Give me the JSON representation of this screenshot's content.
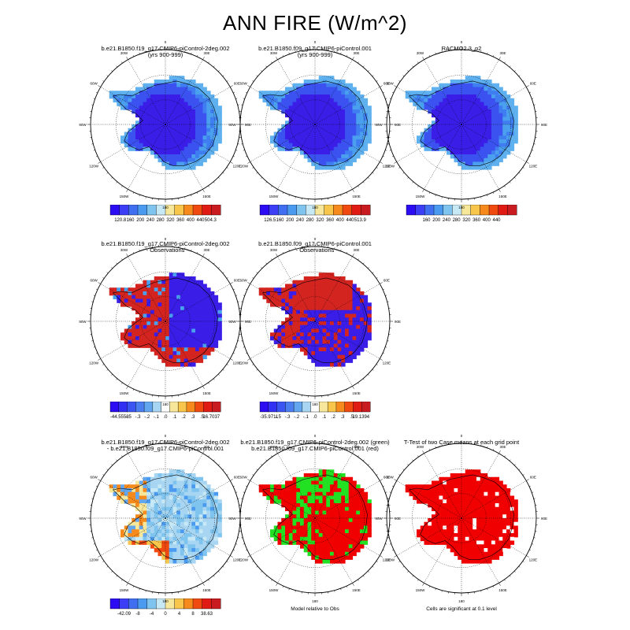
{
  "title": "ANN FIRE (W/m^2)",
  "panels": [
    {
      "id": "p1",
      "row": 0,
      "col": 0,
      "title": [
        "b.e21.B1850.f19_g17.CMIP6-piControl-2deg.002",
        "(yrs 900-999)"
      ],
      "style": "abs",
      "seed": 11
    },
    {
      "id": "p2",
      "row": 0,
      "col": 1,
      "title": [
        "b.e21.B1850.f09_g17.CMIP6-piControl.001",
        "(yrs 900-999)"
      ],
      "style": "abs",
      "seed": 23
    },
    {
      "id": "p3",
      "row": 0,
      "col": 2,
      "title": [
        "RACMO2.3_p2"
      ],
      "style": "abs",
      "seed": 37
    },
    {
      "id": "p4",
      "row": 1,
      "col": 0,
      "title": [
        "b.e21.B1850.f19_g17.CMIP6-piControl-2deg.002",
        "- Observations"
      ],
      "style": "diff_obs",
      "seed": 41
    },
    {
      "id": "p5",
      "row": 1,
      "col": 1,
      "title": [
        "b.e21.B1850.f09_g17.CMIP6-piControl.001",
        "- Observations"
      ],
      "style": "diff_obs2",
      "seed": 53
    },
    {
      "id": "p6",
      "row": 2,
      "col": 0,
      "title": [
        "b.e21.B1850.f19_g17.CMIP6-piControl-2deg.002",
        "- b.e21.B1850.f09_g17.CMIP6-piControl.001"
      ],
      "style": "diff_case",
      "seed": 67
    },
    {
      "id": "p7",
      "row": 2,
      "col": 1,
      "title": [
        "b.e21.B1850.f19_g17.CMIP6-piControl-2deg.002 (green)",
        "b.e21.B1850.f09_g17.CMIP6-piControl.001 (red)"
      ],
      "style": "green_red",
      "seed": 71
    },
    {
      "id": "p8",
      "row": 2,
      "col": 2,
      "title": [
        "T-Test of two Case means at each grid point"
      ],
      "style": "ttest",
      "seed": 83
    }
  ],
  "polar_labels": {
    "angles": [
      0,
      30,
      60,
      90,
      120,
      150,
      180,
      210,
      240,
      270,
      300,
      330
    ],
    "labels": [
      "0",
      "30E",
      "60E",
      "90E",
      "120E",
      "150E",
      "180",
      "150W",
      "120W",
      "90W",
      "60W",
      "30W"
    ]
  },
  "colorbars": [
    {
      "id": "cb1",
      "row": 0,
      "col": 0,
      "colors": [
        "#2c0cf2",
        "#3b3ef4",
        "#3f6ef0",
        "#4a9aef",
        "#7fc4ee",
        "#c7e8f5",
        "#f7e79a",
        "#f8c64a",
        "#f68a1c",
        "#f04a10",
        "#e01b14",
        "#c91c20"
      ],
      "labels": [
        "120.8",
        "160",
        "200",
        "240",
        "280",
        "320",
        "360",
        "400",
        "440",
        "504.3"
      ]
    },
    {
      "id": "cb2",
      "row": 0,
      "col": 1,
      "colors": [
        "#2c0cf2",
        "#3b3ef4",
        "#3f6ef0",
        "#4a9aef",
        "#7fc4ee",
        "#c7e8f5",
        "#f7e79a",
        "#f8c64a",
        "#f68a1c",
        "#f04a10",
        "#e01b14",
        "#c91c20"
      ],
      "labels": [
        "126.5",
        "160",
        "200",
        "240",
        "280",
        "320",
        "360",
        "400",
        "440",
        "513.9"
      ]
    },
    {
      "id": "cb3",
      "row": 0,
      "col": 2,
      "colors": [
        "#2c0cf2",
        "#3b3ef4",
        "#3f6ef0",
        "#4a9aef",
        "#7fc4ee",
        "#c7e8f5",
        "#f7e79a",
        "#f8c64a",
        "#f68a1c",
        "#f04a10",
        "#e01b14",
        "#c91c20"
      ],
      "labels": [
        "",
        "160",
        "200",
        "240",
        "280",
        "320",
        "360",
        "400",
        "440",
        ""
      ]
    },
    {
      "id": "cb4",
      "row": 1,
      "col": 0,
      "colors": [
        "#2c0cf2",
        "#3130f3",
        "#3b55f2",
        "#4b7ef0",
        "#62a6ef",
        "#a8d6f2",
        "#ffffff",
        "#f7e79a",
        "#f8c64a",
        "#f68a1c",
        "#f04a10",
        "#e01b14",
        "#c91c20"
      ],
      "labels": [
        "-44.5558",
        "-.5",
        "-.3",
        "-.2",
        "-.1",
        ".0",
        ".1",
        ".2",
        ".3",
        ".5",
        "16.7037"
      ]
    },
    {
      "id": "cb5",
      "row": 1,
      "col": 1,
      "colors": [
        "#2c0cf2",
        "#3130f3",
        "#3b55f2",
        "#4b7ef0",
        "#62a6ef",
        "#a8d6f2",
        "#ffffff",
        "#f7e79a",
        "#f8c64a",
        "#f68a1c",
        "#f04a10",
        "#e01b14",
        "#c91c20"
      ],
      "labels": [
        "-35.9711",
        "-.5",
        "-.3",
        "-.2",
        "-.1",
        ".0",
        ".1",
        ".2",
        ".3",
        ".5",
        "19.1394"
      ]
    },
    {
      "id": "cb6",
      "row": 2,
      "col": 0,
      "colors": [
        "#2c0cf2",
        "#3b3ef4",
        "#3f6ef0",
        "#4a9aef",
        "#7fc4ee",
        "#c7e8f5",
        "#f7e79a",
        "#f8c64a",
        "#f68a1c",
        "#f04a10",
        "#e01b14",
        "#c91c20"
      ],
      "labels": [
        "-42.09",
        "-8",
        "-4",
        "0",
        "4",
        "8",
        "38.63"
      ]
    }
  ],
  "notes": [
    {
      "id": "n7",
      "row": 2,
      "col": 1,
      "text": "Model relative to Obs"
    },
    {
      "id": "n8",
      "row": 2,
      "col": 2,
      "text": "Cells are significant at 0.1 level"
    }
  ]
}
